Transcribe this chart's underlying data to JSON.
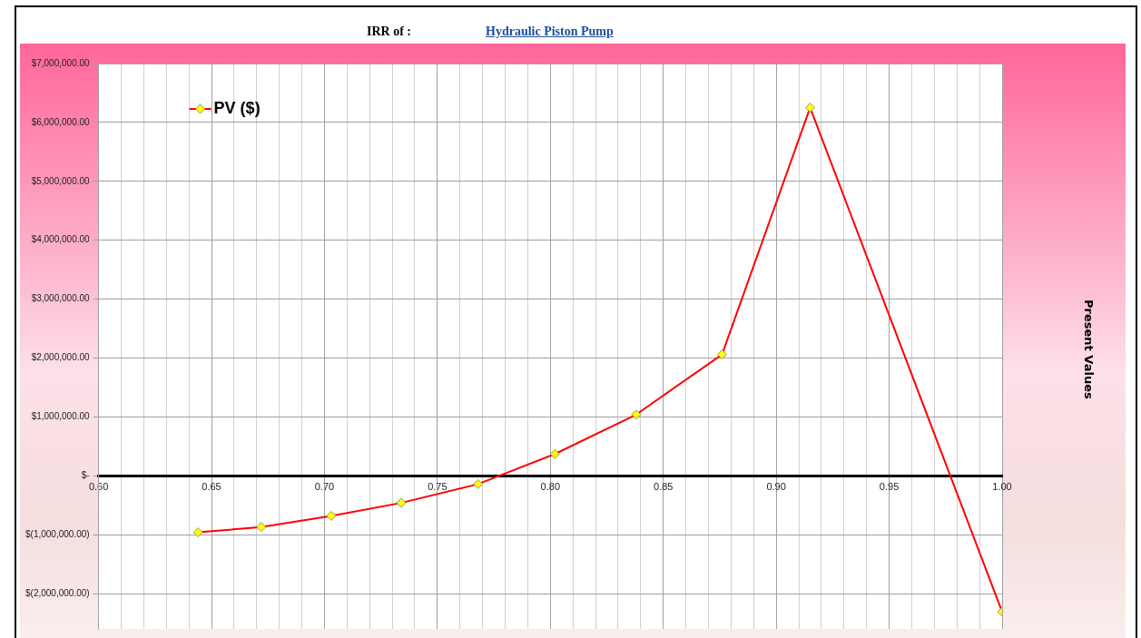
{
  "chart_data": {
    "type": "line",
    "title": "IRR of :",
    "subtitle": "Hydraulic Piston Pump",
    "annotations": [
      "Present Values"
    ],
    "x": [
      0.644,
      0.672,
      0.703,
      0.734,
      0.768,
      0.802,
      0.838,
      0.876,
      0.915,
      1.0
    ],
    "series": [
      {
        "name": "PV ($)",
        "color": "#ff0000",
        "values": [
          -960000,
          -870000,
          -680000,
          -460000,
          -140000,
          370000,
          1040000,
          2060000,
          6250000,
          -2310000
        ]
      }
    ],
    "xlim": [
      0.6,
      1.0
    ],
    "xticks": [
      {
        "value": 0.6,
        "label": "0.60"
      },
      {
        "value": 0.61,
        "label": null
      },
      {
        "value": 0.62,
        "label": null
      },
      {
        "value": 0.63,
        "label": null
      },
      {
        "value": 0.64,
        "label": null
      },
      {
        "value": 0.65,
        "label": "0.65"
      },
      {
        "value": 0.66,
        "label": null
      },
      {
        "value": 0.67,
        "label": null
      },
      {
        "value": 0.68,
        "label": null
      },
      {
        "value": 0.69,
        "label": null
      },
      {
        "value": 0.7,
        "label": "0.70"
      },
      {
        "value": 0.71,
        "label": null
      },
      {
        "value": 0.72,
        "label": null
      },
      {
        "value": 0.73,
        "label": null
      },
      {
        "value": 0.74,
        "label": null
      },
      {
        "value": 0.75,
        "label": "0.75"
      },
      {
        "value": 0.76,
        "label": null
      },
      {
        "value": 0.77,
        "label": null
      },
      {
        "value": 0.78,
        "label": null
      },
      {
        "value": 0.79,
        "label": null
      },
      {
        "value": 0.8,
        "label": "0.80"
      },
      {
        "value": 0.81,
        "label": null
      },
      {
        "value": 0.82,
        "label": null
      },
      {
        "value": 0.83,
        "label": null
      },
      {
        "value": 0.84,
        "label": null
      },
      {
        "value": 0.85,
        "label": "0.85"
      },
      {
        "value": 0.86,
        "label": null
      },
      {
        "value": 0.87,
        "label": null
      },
      {
        "value": 0.88,
        "label": null
      },
      {
        "value": 0.89,
        "label": null
      },
      {
        "value": 0.9,
        "label": "0.90"
      },
      {
        "value": 0.91,
        "label": null
      },
      {
        "value": 0.92,
        "label": null
      },
      {
        "value": 0.93,
        "label": null
      },
      {
        "value": 0.94,
        "label": null
      },
      {
        "value": 0.95,
        "label": "0.95"
      },
      {
        "value": 0.96,
        "label": null
      },
      {
        "value": 0.97,
        "label": null
      },
      {
        "value": 0.98,
        "label": null
      },
      {
        "value": 0.99,
        "label": null
      },
      {
        "value": 1.0,
        "label": "1.00"
      }
    ],
    "ylim": [
      -2600000,
      7000000
    ],
    "yticks": [
      {
        "value": -2000000,
        "label": "$(2,000,000.00)"
      },
      {
        "value": -1000000,
        "label": "$(1,000,000.00)"
      },
      {
        "value": 0,
        "label": "$-"
      },
      {
        "value": 1000000,
        "label": "$1,000,000.00"
      },
      {
        "value": 2000000,
        "label": "$2,000,000.00"
      },
      {
        "value": 3000000,
        "label": "$3,000,000.00"
      },
      {
        "value": 4000000,
        "label": "$4,000,000.00"
      },
      {
        "value": 5000000,
        "label": "$5,000,000.00"
      },
      {
        "value": 6000000,
        "label": "$6,000,000.00"
      },
      {
        "value": 7000000,
        "label": "$7,000,000.00"
      }
    ],
    "grid": true,
    "legend": "top left",
    "marker": "diamond",
    "line_style": "solid"
  }
}
